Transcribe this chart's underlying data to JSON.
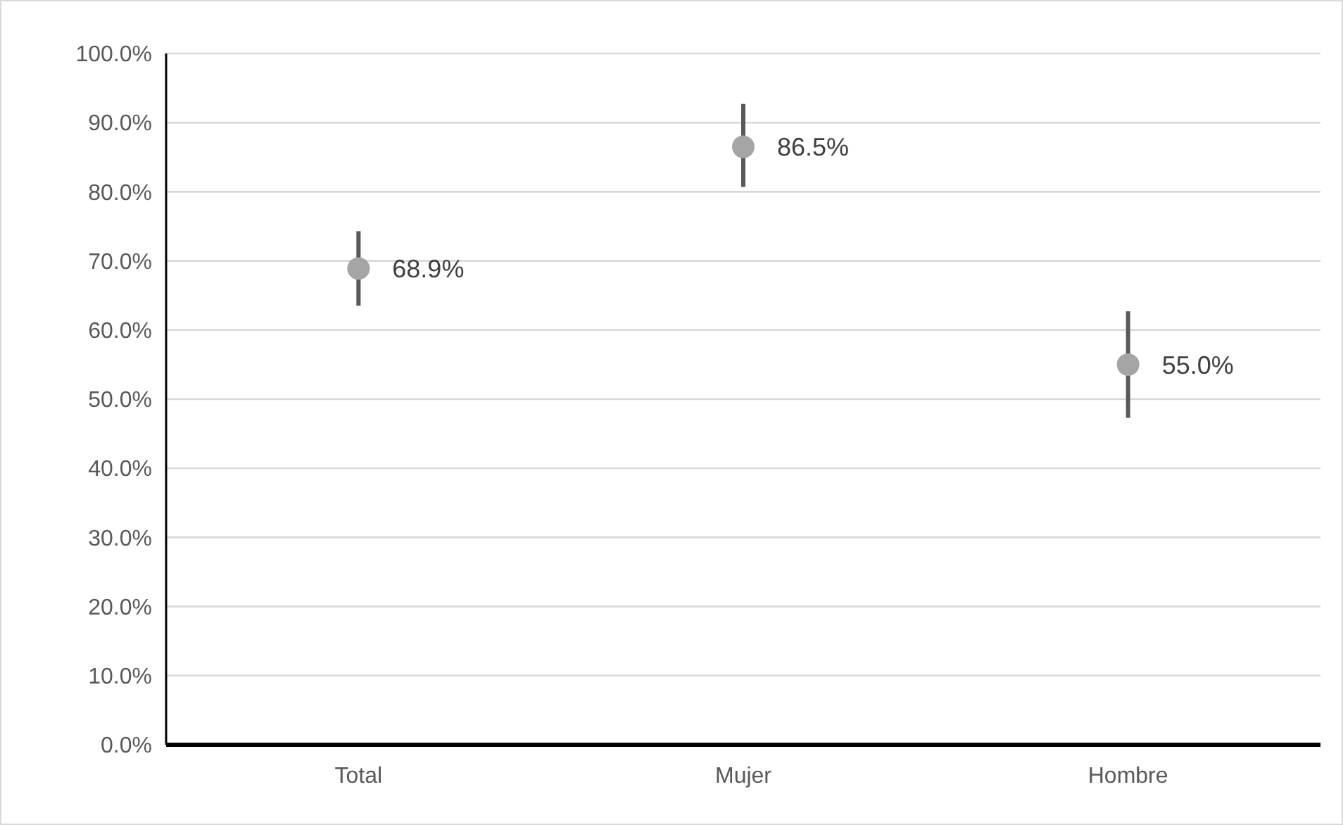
{
  "chart_data": {
    "type": "scatter",
    "categories": [
      "Total",
      "Mujer",
      "Hombre"
    ],
    "values": [
      68.9,
      86.5,
      55.0
    ],
    "errors": [
      [
        63.5,
        74.3
      ],
      [
        80.7,
        92.7
      ],
      [
        47.3,
        62.7
      ]
    ],
    "value_labels": [
      "68.9%",
      "86.5%",
      "55.0%"
    ],
    "color": "#a5a5a5",
    "marker": "circle",
    "grid": "y",
    "ylim": [
      0,
      100
    ],
    "yticks": [
      {
        "value": 0,
        "label": "0.0%"
      },
      {
        "value": 10,
        "label": "10.0%"
      },
      {
        "value": 20,
        "label": "20.0%"
      },
      {
        "value": 30,
        "label": "30.0%"
      },
      {
        "value": 40,
        "label": "40.0%"
      },
      {
        "value": 50,
        "label": "50.0%"
      },
      {
        "value": 60,
        "label": "60.0%"
      },
      {
        "value": 70,
        "label": "70.0%"
      },
      {
        "value": 80,
        "label": "80.0%"
      },
      {
        "value": 90,
        "label": "90.0%"
      },
      {
        "value": 100,
        "label": "100.0%"
      }
    ]
  }
}
